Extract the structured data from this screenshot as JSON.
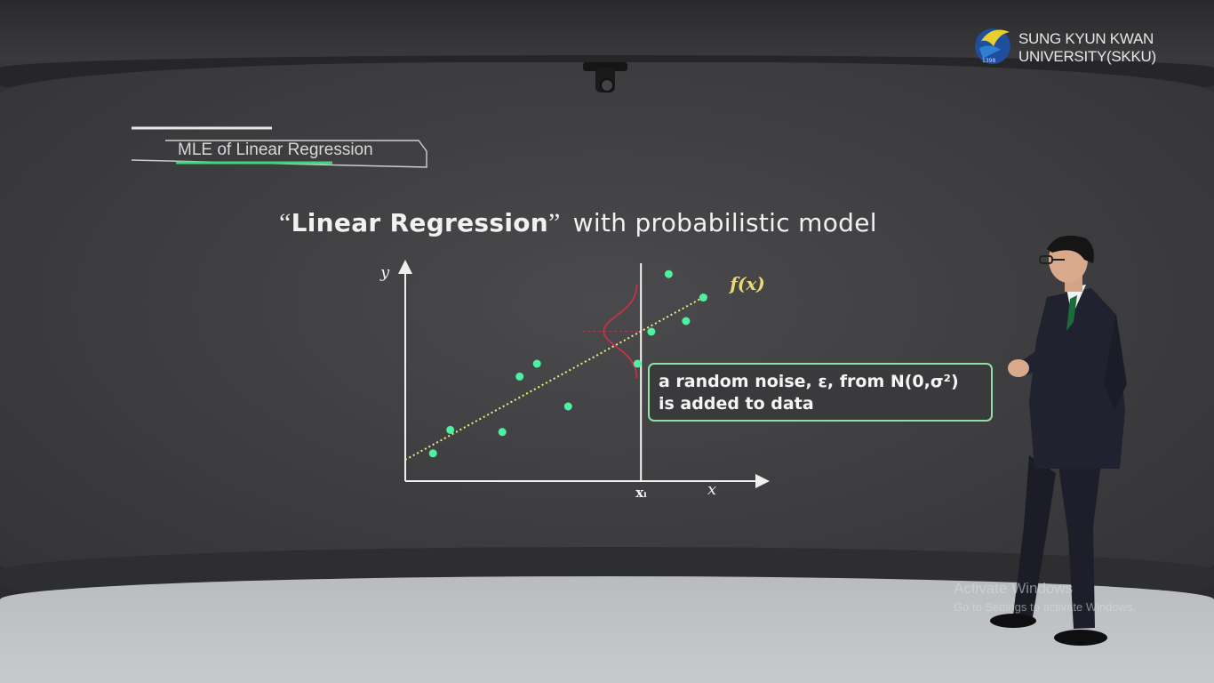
{
  "logo": {
    "line1": "SUNG KYUN KWAN",
    "line2": "UNIVERSITY(SKKU)",
    "year": "1398"
  },
  "slide": {
    "section_tag": "MLE of Linear Regression",
    "headline": {
      "open_quote": "“",
      "bold": "Linear Regression",
      "close_quote": "”",
      "rest": "with probabilistic model"
    },
    "callout": {
      "line1": "a random noise, ε, from N(0,σ²)",
      "line2": "is added to data"
    }
  },
  "chart_data": {
    "type": "scatter",
    "xlabel": "x",
    "ylabel": "y",
    "fit_label": "f(x)",
    "xi_label": "xᵢ",
    "points": [
      {
        "x": 0.08,
        "y": 0.13
      },
      {
        "x": 0.13,
        "y": 0.24
      },
      {
        "x": 0.28,
        "y": 0.23
      },
      {
        "x": 0.33,
        "y": 0.49
      },
      {
        "x": 0.38,
        "y": 0.55
      },
      {
        "x": 0.47,
        "y": 0.35
      },
      {
        "x": 0.67,
        "y": 0.55
      },
      {
        "x": 0.71,
        "y": 0.7
      },
      {
        "x": 0.76,
        "y": 0.97
      },
      {
        "x": 0.81,
        "y": 0.75
      },
      {
        "x": 0.86,
        "y": 0.86
      }
    ],
    "fit_line": {
      "x0": 0.0,
      "y0": 0.1,
      "x1": 0.87,
      "y1": 0.87
    },
    "xi": 0.68,
    "xlim": [
      0,
      1
    ],
    "ylim": [
      0,
      1
    ],
    "colors": {
      "points": "#4df2a0",
      "fit_line": "#e9ef7a",
      "fit_label": "#ecd978",
      "axes": "#f0f0f0",
      "gaussian": "#c4324a"
    }
  },
  "watermark": {
    "title": "Activate Windows",
    "subtitle": "Go to Settings to activate Windows."
  }
}
